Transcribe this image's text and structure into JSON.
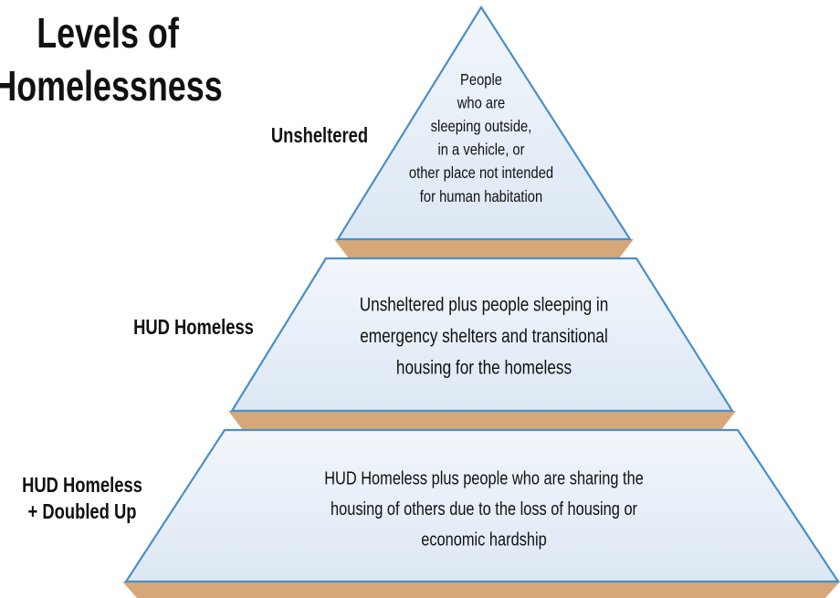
{
  "title": [
    "Levels of",
    "Homelessness"
  ],
  "levels": [
    {
      "label": [
        "Unsheltered"
      ],
      "description": [
        "People",
        "who are",
        "sleeping outside,",
        "in a vehicle, or",
        "other place not intended",
        "for human habitation"
      ]
    },
    {
      "label": [
        "HUD Homeless"
      ],
      "description": [
        "Unsheltered plus people sleeping in",
        "emergency shelters and transitional",
        "housing for the homeless"
      ]
    },
    {
      "label": [
        "HUD Homeless",
        "+ Doubled Up"
      ],
      "description": [
        "HUD Homeless plus people who are sharing the",
        "housing of others due to the loss of housing or",
        "economic hardship"
      ]
    }
  ]
}
